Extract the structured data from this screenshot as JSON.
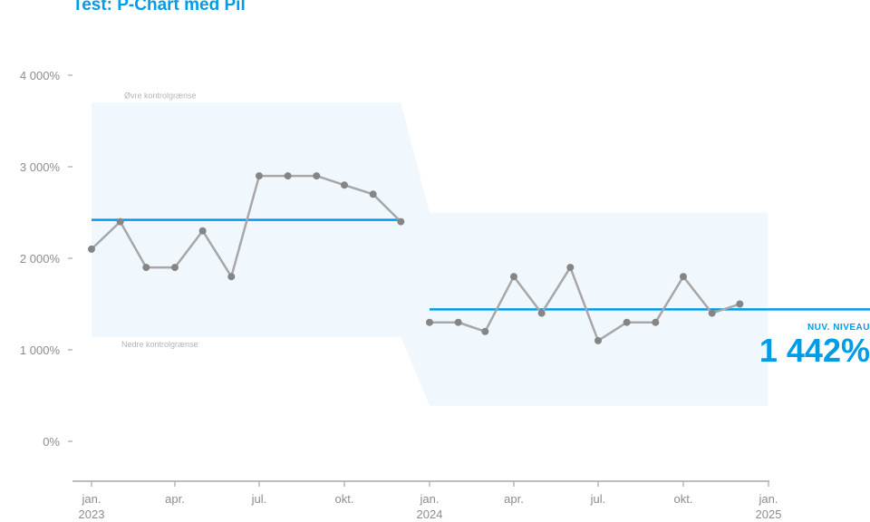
{
  "title": "Test: P-Chart med Pil",
  "colors": {
    "accent": "#009ce8",
    "series": "#a7a7a9",
    "points": "#858585",
    "band": "#f1f8fd",
    "axis": "#a7a7a9",
    "tick_label": "#8c8c8c",
    "band_label": "#b4b4b4"
  },
  "chart_data": {
    "type": "line",
    "title": "Test: P-Chart med Pil",
    "xlabel": "",
    "ylabel": "",
    "ylim": [
      -400,
      4000
    ],
    "xlim": [
      "2023-01-01",
      "2025-01-01"
    ],
    "y_ticks": [
      {
        "value": 0,
        "label": "0%"
      },
      {
        "value": 1000,
        "label": "1 000%"
      },
      {
        "value": 2000,
        "label": "2 000%"
      },
      {
        "value": 3000,
        "label": "3 000%"
      },
      {
        "value": 4000,
        "label": "4 000%"
      }
    ],
    "x_ticks": [
      {
        "date": "2023-01-01",
        "label": "jan.",
        "year": "2023"
      },
      {
        "date": "2023-04-01",
        "label": "apr.",
        "year": ""
      },
      {
        "date": "2023-07-01",
        "label": "jul.",
        "year": ""
      },
      {
        "date": "2023-10-01",
        "label": "okt.",
        "year": ""
      },
      {
        "date": "2024-01-01",
        "label": "jan.",
        "year": "2024"
      },
      {
        "date": "2024-04-01",
        "label": "apr.",
        "year": ""
      },
      {
        "date": "2024-07-01",
        "label": "jul.",
        "year": ""
      },
      {
        "date": "2024-10-01",
        "label": "okt.",
        "year": ""
      },
      {
        "date": "2025-01-01",
        "label": "jan.",
        "year": "2025"
      }
    ],
    "grid": false,
    "series": [
      {
        "x": [
          "2023-01-01",
          "2023-02-01",
          "2023-03-01",
          "2023-04-01",
          "2023-05-01",
          "2023-06-01",
          "2023-07-01",
          "2023-08-01",
          "2023-09-01",
          "2023-10-01",
          "2023-11-01",
          "2023-12-01",
          "2024-01-01",
          "2024-02-01",
          "2024-03-01",
          "2024-04-01",
          "2024-05-01",
          "2024-06-01",
          "2024-07-01",
          "2024-08-01",
          "2024-09-01",
          "2024-10-01",
          "2024-11-01",
          "2024-12-01"
        ],
        "values": [
          2100,
          2400,
          1900,
          1900,
          2300,
          1800,
          2900,
          2900,
          2900,
          2800,
          2700,
          2400,
          1300,
          1300,
          1200,
          1800,
          1400,
          1900,
          1100,
          1300,
          1300,
          1800,
          1400,
          1500
        ]
      }
    ],
    "phases": [
      {
        "start": "2023-01-01",
        "end": "2023-12-01",
        "center": 2420,
        "upper": 3700,
        "lower": 1140
      },
      {
        "start": "2024-01-01",
        "end": "2024-12-01",
        "center": 1442,
        "upper": 2500,
        "lower": 390
      }
    ],
    "annotations": {
      "upper_limit_label": "Øvre kontrolgrænse",
      "lower_limit_label": "Nedre kontrolgrænse",
      "current_level_label": "NUV. NIVEAU",
      "current_level_value": "1 442%"
    }
  }
}
